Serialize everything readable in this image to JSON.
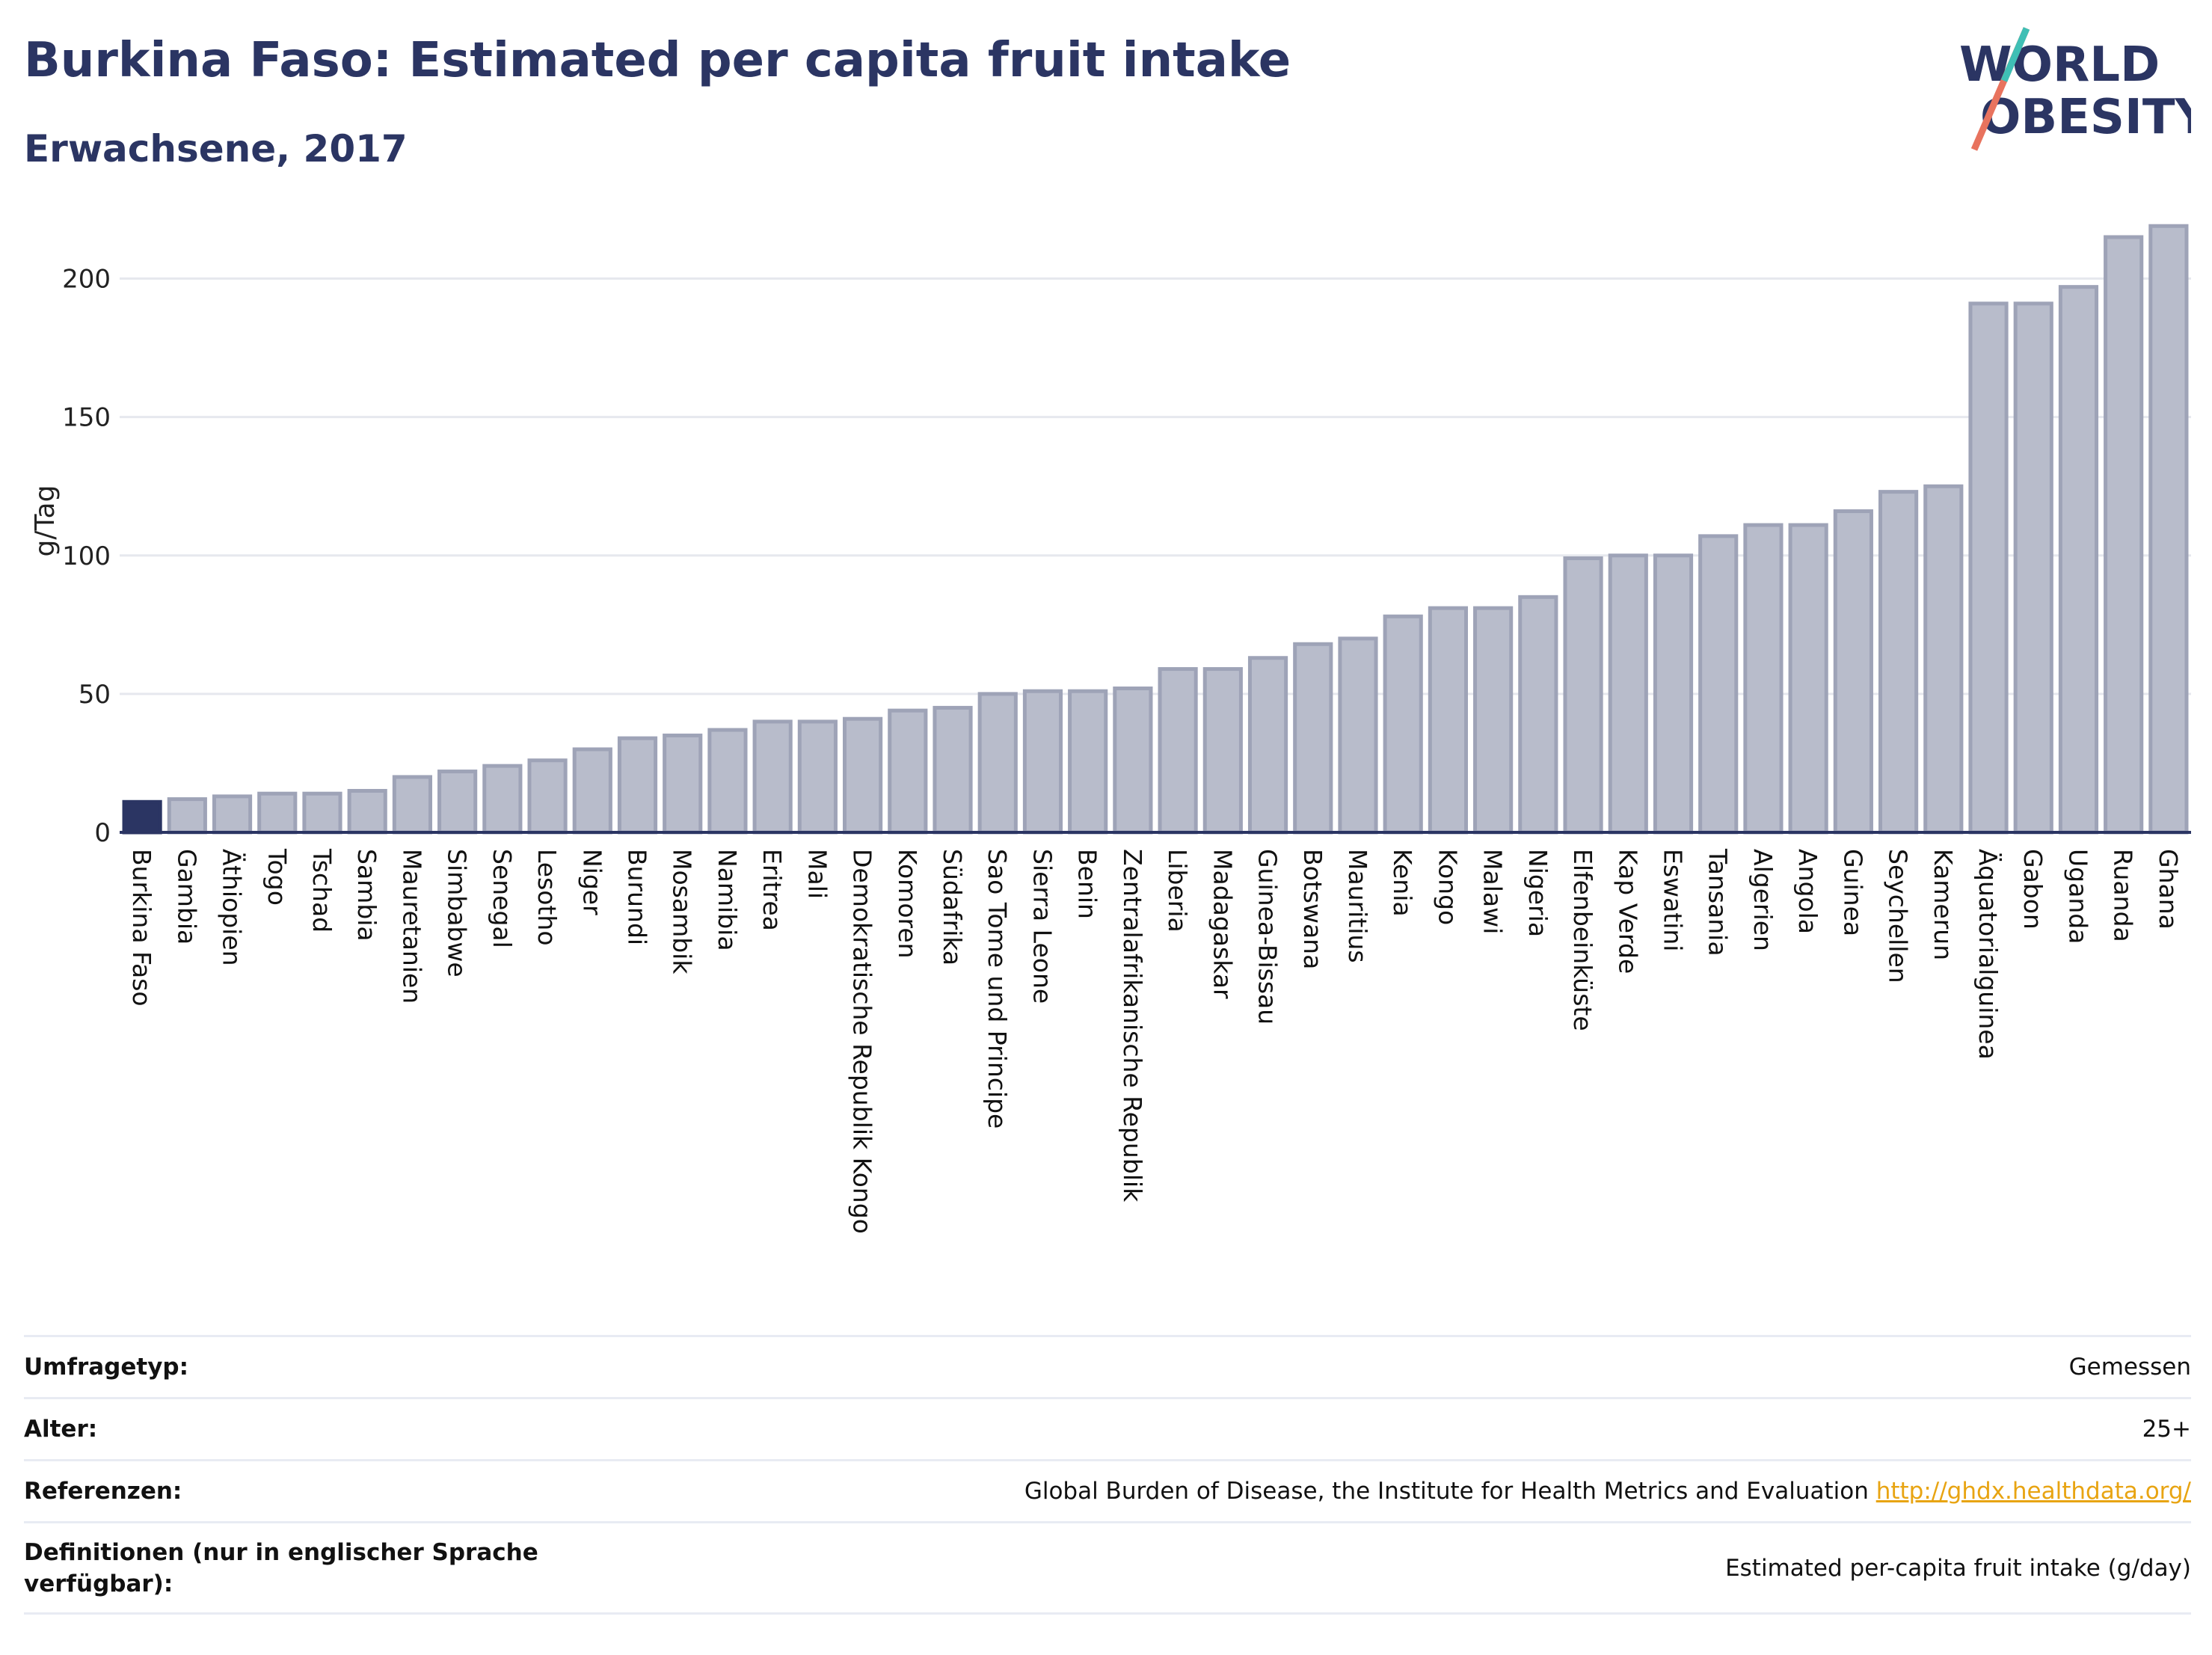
{
  "header": {
    "title": "Burkina Faso: Estimated per capita fruit intake",
    "subtitle": "Erwachsene, 2017"
  },
  "logo": {
    "line1": "WORLD",
    "line2": "OBESITY"
  },
  "colors": {
    "highlight": "#2b3563",
    "bar_fill": "#b8bccb",
    "bar_stroke": "#9ea3b7",
    "title": "#2b3563",
    "link": "#e8a412"
  },
  "chart_data": {
    "type": "bar",
    "ylabel": "g/Tag",
    "ylim": [
      0,
      225
    ],
    "yticks": [
      0,
      50,
      100,
      150,
      200
    ],
    "grid": true,
    "highlight": "Burkina Faso",
    "categories": [
      "Burkina Faso",
      "Gambia",
      "Äthiopien",
      "Togo",
      "Tschad",
      "Sambia",
      "Mauretanien",
      "Simbabwe",
      "Senegal",
      "Lesotho",
      "Niger",
      "Burundi",
      "Mosambik",
      "Namibia",
      "Eritrea",
      "Mali",
      "Demokratische Republik Kongo",
      "Komoren",
      "Südafrika",
      "Sao Tome und Principe",
      "Sierra Leone",
      "Benin",
      "Zentralafrikanische Republik",
      "Liberia",
      "Madagaskar",
      "Guinea-Bissau",
      "Botswana",
      "Mauritius",
      "Kenia",
      "Kongo",
      "Malawi",
      "Nigeria",
      "Elfenbeinküste",
      "Kap Verde",
      "Eswatini",
      "Tansania",
      "Algerien",
      "Angola",
      "Guinea",
      "Seychellen",
      "Kamerun",
      "Äquatorialguinea",
      "Gabon",
      "Uganda",
      "Ruanda",
      "Ghana"
    ],
    "values": [
      11,
      12,
      13,
      14,
      14,
      15,
      20,
      22,
      24,
      26,
      30,
      34,
      35,
      37,
      40,
      40,
      41,
      44,
      45,
      50,
      51,
      51,
      52,
      59,
      59,
      63,
      68,
      70,
      78,
      81,
      81,
      85,
      99,
      100,
      100,
      107,
      111,
      111,
      116,
      123,
      125,
      191,
      191,
      197,
      215,
      219
    ]
  },
  "footer": {
    "rows": [
      {
        "label": "Umfragetyp:",
        "value": "Gemessen"
      },
      {
        "label": "Alter:",
        "value": "25+"
      },
      {
        "label": "Referenzen:",
        "value": "Global Burden of Disease, the Institute for Health Metrics and Evaluation ",
        "link": "http://ghdx.healthdata.org/"
      },
      {
        "label": "Definitionen (nur in englischer Sprache verfügbar):",
        "value": "Estimated per-capita fruit intake (g/day)"
      }
    ]
  }
}
